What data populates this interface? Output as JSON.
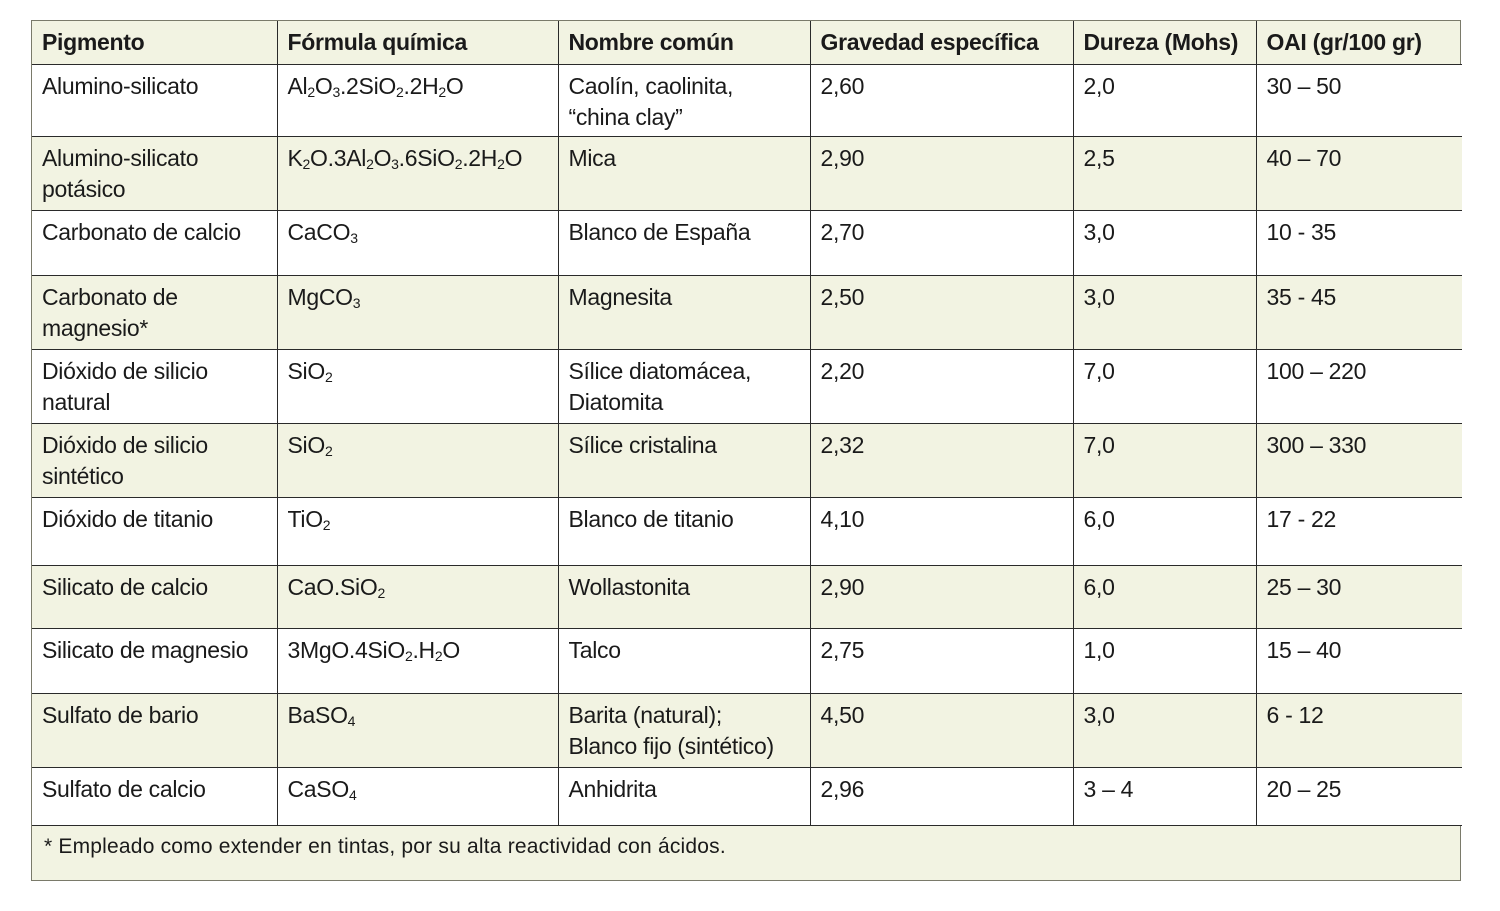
{
  "headers": [
    "Pigmento",
    "Fórmula química",
    "Nombre común",
    "Gravedad específica",
    "Dureza (Mohs)",
    "OAI (gr/100 gr)"
  ],
  "rows": [
    {
      "pigment": [
        "Alumino-silicato"
      ],
      "formula": [
        [
          "Al"
        ],
        [
          "2",
          "sub"
        ],
        [
          "O"
        ],
        [
          "3",
          "sub"
        ],
        [
          ".2SiO"
        ],
        [
          "2",
          "sub"
        ],
        [
          ".2H"
        ],
        [
          "2",
          "sub"
        ],
        [
          "O"
        ]
      ],
      "common": [
        "Caolín, caolinita,",
        "“china clay”"
      ],
      "gravity": "2,60",
      "hardness": "2,0",
      "oai": "30 – 50"
    },
    {
      "pigment": [
        "Alumino-silicato",
        "potásico"
      ],
      "formula": [
        [
          "K"
        ],
        [
          "2",
          "sub"
        ],
        [
          "O.3Al"
        ],
        [
          "2",
          "sub"
        ],
        [
          "O"
        ],
        [
          "3",
          "sub"
        ],
        [
          ".6SiO"
        ],
        [
          "2",
          "sub"
        ],
        [
          ".2H"
        ],
        [
          "2",
          "sub"
        ],
        [
          "O"
        ]
      ],
      "common": [
        "Mica"
      ],
      "gravity": "2,90",
      "hardness": "2,5",
      "oai": "40 – 70"
    },
    {
      "pigment": [
        "Carbonato de calcio"
      ],
      "formula": [
        [
          "CaCO"
        ],
        [
          "3",
          "sub"
        ]
      ],
      "common": [
        "Blanco de España"
      ],
      "gravity": "2,70",
      "hardness": "3,0",
      "oai": "10 - 35"
    },
    {
      "pigment": [
        "Carbonato de",
        "magnesio*"
      ],
      "formula": [
        [
          "MgCO"
        ],
        [
          "3",
          "sub"
        ]
      ],
      "common": [
        "Magnesita"
      ],
      "gravity": "2,50",
      "hardness": "3,0",
      "oai": "35 - 45"
    },
    {
      "pigment": [
        "Dióxido de silicio",
        "natural"
      ],
      "formula": [
        [
          "SiO"
        ],
        [
          "2",
          "sub"
        ]
      ],
      "common": [
        "Sílice diatomácea,",
        "Diatomita"
      ],
      "gravity": "2,20",
      "hardness": "7,0",
      "oai": "100 – 220"
    },
    {
      "pigment": [
        "Dióxido de silicio",
        "sintético"
      ],
      "formula": [
        [
          "SiO"
        ],
        [
          "2",
          "sub"
        ]
      ],
      "common": [
        "Sílice cristalina"
      ],
      "gravity": "2,32",
      "hardness": "7,0",
      "oai": "300 – 330"
    },
    {
      "pigment": [
        "Dióxido de titanio"
      ],
      "formula": [
        [
          "TiO"
        ],
        [
          "2",
          "sub"
        ]
      ],
      "common": [
        "Blanco de titanio"
      ],
      "gravity": "4,10",
      "hardness": "6,0",
      "oai": "17 - 22"
    },
    {
      "pigment": [
        "Silicato de calcio"
      ],
      "formula": [
        [
          "CaO.SiO"
        ],
        [
          "2",
          "sub"
        ]
      ],
      "common": [
        "Wollastonita"
      ],
      "gravity": "2,90",
      "hardness": "6,0",
      "oai": "25 – 30"
    },
    {
      "pigment": [
        "Silicato de magnesio"
      ],
      "formula": [
        [
          "3MgO.4SiO"
        ],
        [
          "2",
          "sub"
        ],
        [
          ".H"
        ],
        [
          "2",
          "sub"
        ],
        [
          "O"
        ]
      ],
      "common": [
        "Talco"
      ],
      "gravity": "2,75",
      "hardness": "1,0",
      "oai": "15 – 40"
    },
    {
      "pigment": [
        "Sulfato de bario"
      ],
      "formula": [
        [
          "BaSO"
        ],
        [
          "4",
          "sub"
        ]
      ],
      "common": [
        "Barita (natural);",
        "Blanco fijo (sintético)"
      ],
      "gravity": "4,50",
      "hardness": "3,0",
      "oai": "6 - 12"
    },
    {
      "pigment": [
        "Sulfato de calcio"
      ],
      "formula": [
        [
          "CaSO"
        ],
        [
          "4",
          "sub"
        ]
      ],
      "common": [
        "Anhidrita"
      ],
      "gravity": "2,96",
      "hardness": "3 – 4",
      "oai": "20 – 25"
    }
  ],
  "footnote": "* Empleado como extender en tintas, por su alta reactividad con ácidos.",
  "colors": {
    "band": "#f2f3e2",
    "white": "#ffffff",
    "border": "#2a2a2a"
  }
}
